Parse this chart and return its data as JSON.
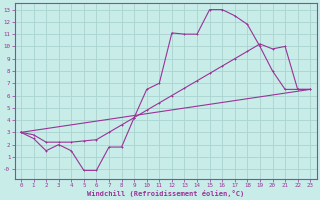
{
  "xlabel": "Windchill (Refroidissement éolien,°C)",
  "bg_color": "#c8ece8",
  "grid_color": "#aad4d0",
  "line_color": "#993399",
  "spine_color": "#7755aa",
  "xlim": [
    -0.5,
    23.5
  ],
  "ylim": [
    -0.8,
    13.5
  ],
  "xticks": [
    0,
    1,
    2,
    3,
    4,
    5,
    6,
    7,
    8,
    9,
    10,
    11,
    12,
    13,
    14,
    15,
    16,
    17,
    18,
    19,
    20,
    21,
    22,
    23
  ],
  "yticks": [
    0,
    1,
    2,
    3,
    4,
    5,
    6,
    7,
    8,
    9,
    10,
    11,
    12,
    13
  ],
  "ytick_labels": [
    "-0",
    "1",
    "2",
    "3",
    "4",
    "5",
    "6",
    "7",
    "8",
    "9",
    "10",
    "11",
    "12",
    "13"
  ],
  "line1_x": [
    0,
    1,
    2,
    3,
    4,
    5,
    6,
    7,
    8,
    9,
    10,
    11,
    12,
    13,
    14,
    15,
    16,
    17,
    18,
    19,
    20,
    21,
    22,
    23
  ],
  "line1_y": [
    3.0,
    2.5,
    1.5,
    2.0,
    1.5,
    -0.1,
    -0.1,
    1.8,
    1.8,
    4.2,
    6.5,
    7.0,
    11.1,
    11.0,
    11.0,
    13.0,
    13.0,
    12.5,
    11.8,
    10.0,
    8.0,
    6.5,
    6.5,
    6.5
  ],
  "line2_x": [
    0,
    1,
    2,
    3,
    4,
    5,
    6,
    7,
    8,
    9,
    10,
    11,
    12,
    13,
    14,
    15,
    16,
    17,
    18,
    19,
    20,
    21,
    22,
    23
  ],
  "line2_y": [
    3.0,
    2.8,
    2.2,
    2.2,
    2.2,
    2.3,
    2.4,
    3.0,
    3.6,
    4.2,
    4.8,
    5.4,
    6.0,
    6.6,
    7.2,
    7.8,
    8.4,
    9.0,
    9.6,
    10.2,
    9.8,
    10.0,
    6.5,
    6.5
  ],
  "line3_x": [
    0,
    23
  ],
  "line3_y": [
    3.0,
    6.5
  ]
}
